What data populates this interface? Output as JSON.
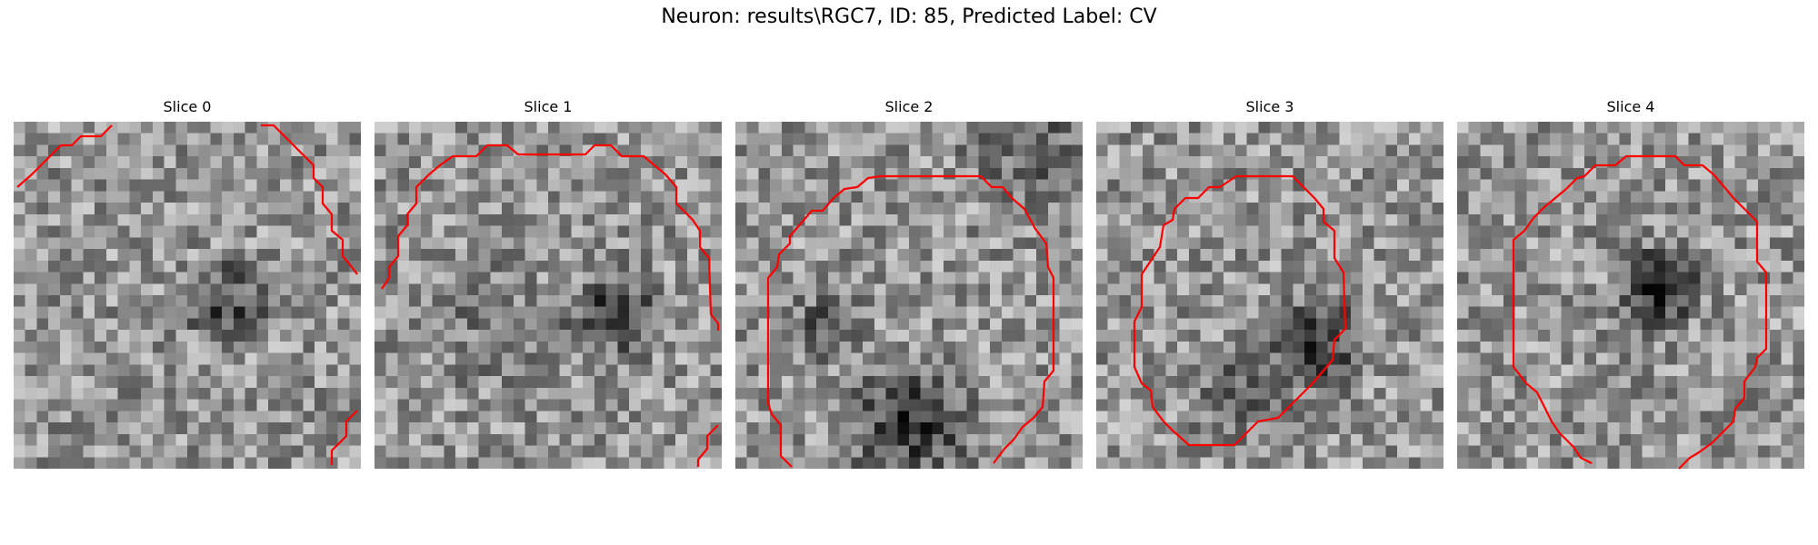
{
  "figure": {
    "title": "Neuron: results\\RGC7, ID: 85, Predicted Label: CV"
  },
  "panels": [
    {
      "title": "Slice 0"
    },
    {
      "title": "Slice 1"
    },
    {
      "title": "Slice 2"
    },
    {
      "title": "Slice 3"
    },
    {
      "title": "Slice 4"
    }
  ],
  "colors": {
    "contour": "#ff0000",
    "colormap": "gray"
  }
}
